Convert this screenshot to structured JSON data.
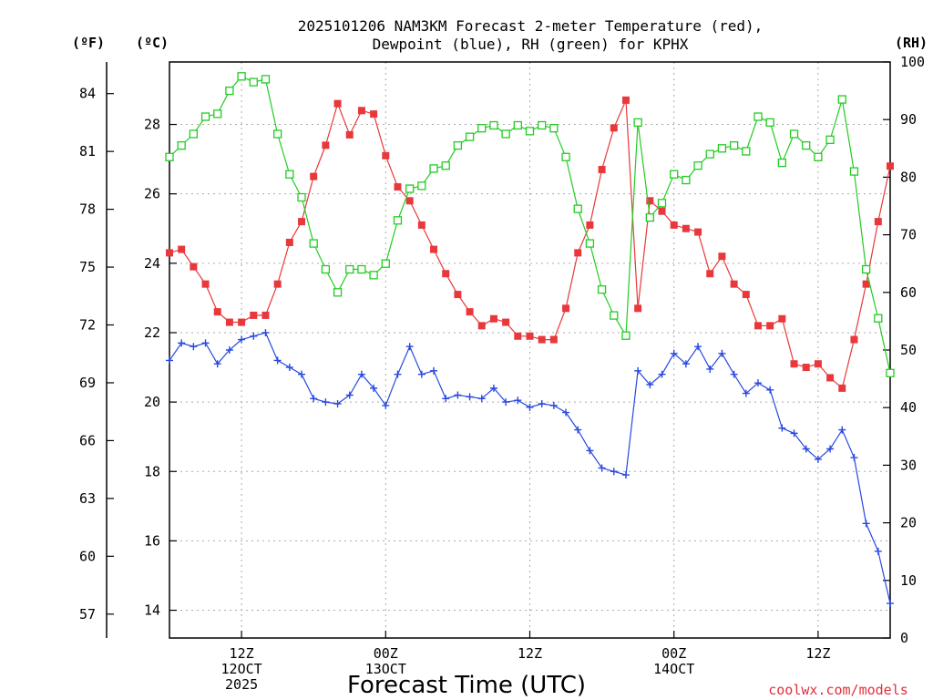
{
  "chart_data": {
    "type": "line",
    "title_line1": "2025101206 NAM3KM Forecast 2-meter Temperature (red),",
    "title_line2": "Dewpoint (blue), RH (green) for KPHX",
    "xlabel": "Forecast Time (UTC)",
    "credit": "coolwx.com/models",
    "unit_f": "(ºF)",
    "unit_c": "(ºC)",
    "unit_rh": "(RH)",
    "x_range_hours": [
      0,
      60
    ],
    "ylim_c": [
      13.2,
      29.8
    ],
    "ylim_rh": [
      0,
      100
    ],
    "f_ticks": [
      "57",
      "60",
      "63",
      "66",
      "69",
      "72",
      "75",
      "78",
      "81",
      "84"
    ],
    "c_ticks": [
      "14",
      "16",
      "18",
      "20",
      "22",
      "24",
      "26",
      "28"
    ],
    "rh_ticks": [
      "0",
      "10",
      "20",
      "30",
      "40",
      "50",
      "60",
      "70",
      "80",
      "90",
      "100"
    ],
    "x_ticks": [
      {
        "hour": 6,
        "l1": "12Z",
        "l2": "12OCT",
        "l3": "2025"
      },
      {
        "hour": 18,
        "l1": "00Z",
        "l2": "13OCT",
        "l3": ""
      },
      {
        "hour": 30,
        "l1": "12Z",
        "l2": "",
        "l3": ""
      },
      {
        "hour": 42,
        "l1": "00Z",
        "l2": "14OCT",
        "l3": ""
      },
      {
        "hour": 54,
        "l1": "12Z",
        "l2": "",
        "l3": ""
      }
    ],
    "series": [
      {
        "name": "Temperature",
        "color": "#e8383c",
        "marker": "filled-square",
        "values": [
          24.3,
          24.4,
          23.9,
          23.4,
          22.6,
          22.3,
          22.3,
          22.5,
          22.5,
          23.4,
          24.6,
          25.2,
          26.5,
          27.4,
          28.6,
          27.7,
          28.4,
          28.3,
          27.1,
          26.2,
          25.8,
          25.1,
          24.4,
          23.7,
          23.1,
          22.6,
          22.2,
          22.4,
          22.3,
          21.9,
          21.9,
          21.8,
          21.8,
          22.7,
          24.3,
          25.1,
          26.7,
          27.9,
          28.7,
          22.7,
          25.8,
          25.5,
          25.1,
          25.0,
          24.9,
          23.7,
          24.2,
          23.4,
          23.1,
          22.2,
          22.2,
          22.4,
          21.1,
          21.0,
          21.1,
          20.7,
          20.4,
          21.8,
          23.4,
          25.2,
          26.8
        ]
      },
      {
        "name": "Dewpoint",
        "color": "#2848e0",
        "marker": "plus",
        "values": [
          21.2,
          21.7,
          21.6,
          21.7,
          21.1,
          21.5,
          21.8,
          21.9,
          22.0,
          21.2,
          21.0,
          20.8,
          20.1,
          20.0,
          19.95,
          20.2,
          20.8,
          20.4,
          19.9,
          20.8,
          21.6,
          20.8,
          20.9,
          20.1,
          20.2,
          20.15,
          20.1,
          20.4,
          20.0,
          20.05,
          19.85,
          19.95,
          19.9,
          19.7,
          19.2,
          18.6,
          18.1,
          18.0,
          17.9,
          20.9,
          20.5,
          20.8,
          21.4,
          21.1,
          21.6,
          20.95,
          21.4,
          20.8,
          20.25,
          20.55,
          20.35,
          19.25,
          19.1,
          18.65,
          18.35,
          18.65,
          19.2,
          18.4,
          16.5,
          15.7,
          14.2
        ]
      },
      {
        "name": "RH",
        "color": "#22cc22",
        "marker": "open-square",
        "values": [
          83.5,
          85.5,
          87.5,
          90.5,
          91,
          95,
          97.5,
          96.5,
          97,
          87.5,
          80.5,
          76.5,
          68.5,
          64,
          60,
          64,
          64,
          63,
          65,
          72.5,
          78,
          78.5,
          81.5,
          82,
          85.5,
          87,
          88.5,
          89,
          87.5,
          89,
          88,
          89,
          88.5,
          83.5,
          74.5,
          68.5,
          60.5,
          56,
          52.5,
          89.5,
          73,
          75.5,
          80.5,
          79.5,
          82,
          84,
          85,
          85.5,
          84.5,
          90.5,
          89.5,
          82.5,
          87.5,
          85.5,
          83.5,
          86.5,
          93.5,
          81,
          64,
          55.5,
          46
        ]
      }
    ]
  }
}
